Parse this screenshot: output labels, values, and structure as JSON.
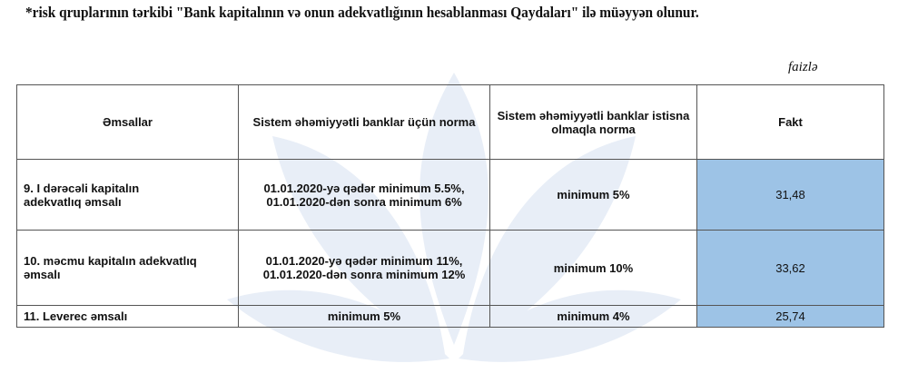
{
  "note": "*risk qruplarının tərkibi \"Bank kapitalının və onun adekvatlığının hesablanması Qaydaları\" ilə müəyyən olunur.",
  "unit": "faizlə",
  "colors": {
    "fakt_fill": "#9dc3e6",
    "watermark": "#e8eef7"
  },
  "table": {
    "headers": [
      "Əmsallar",
      "Sistem əhəmiyyətli banklar üçün norma",
      "Sistem əhəmiyyətli banklar istisna olmaqla norma",
      "Fakt"
    ],
    "rows": [
      {
        "name_l1": "9.  I dərəcəli  kapitalın",
        "name_l2": "adekvatlıq əmsalı",
        "norm_l1": "01.01.2020-yə qədər minimum 5.5%,",
        "norm_l2": "01.01.2020-dən sonra minimum 6%",
        "other": "minimum 5%",
        "fakt": "31,48"
      },
      {
        "name_l1": "10. məcmu kapitalın  adekvatlıq",
        "name_l2": "əmsalı",
        "norm_l1": "01.01.2020-yə qədər minimum 11%,",
        "norm_l2": "01.01.2020-dən sonra minimum 12%",
        "other": "minimum 10%",
        "fakt": "33,62"
      },
      {
        "name_l1": "11. Leverec əmsalı",
        "name_l2": "",
        "norm_l1": "minimum 5%",
        "norm_l2": "",
        "other": "minimum 4%",
        "fakt": "25,74"
      }
    ]
  }
}
